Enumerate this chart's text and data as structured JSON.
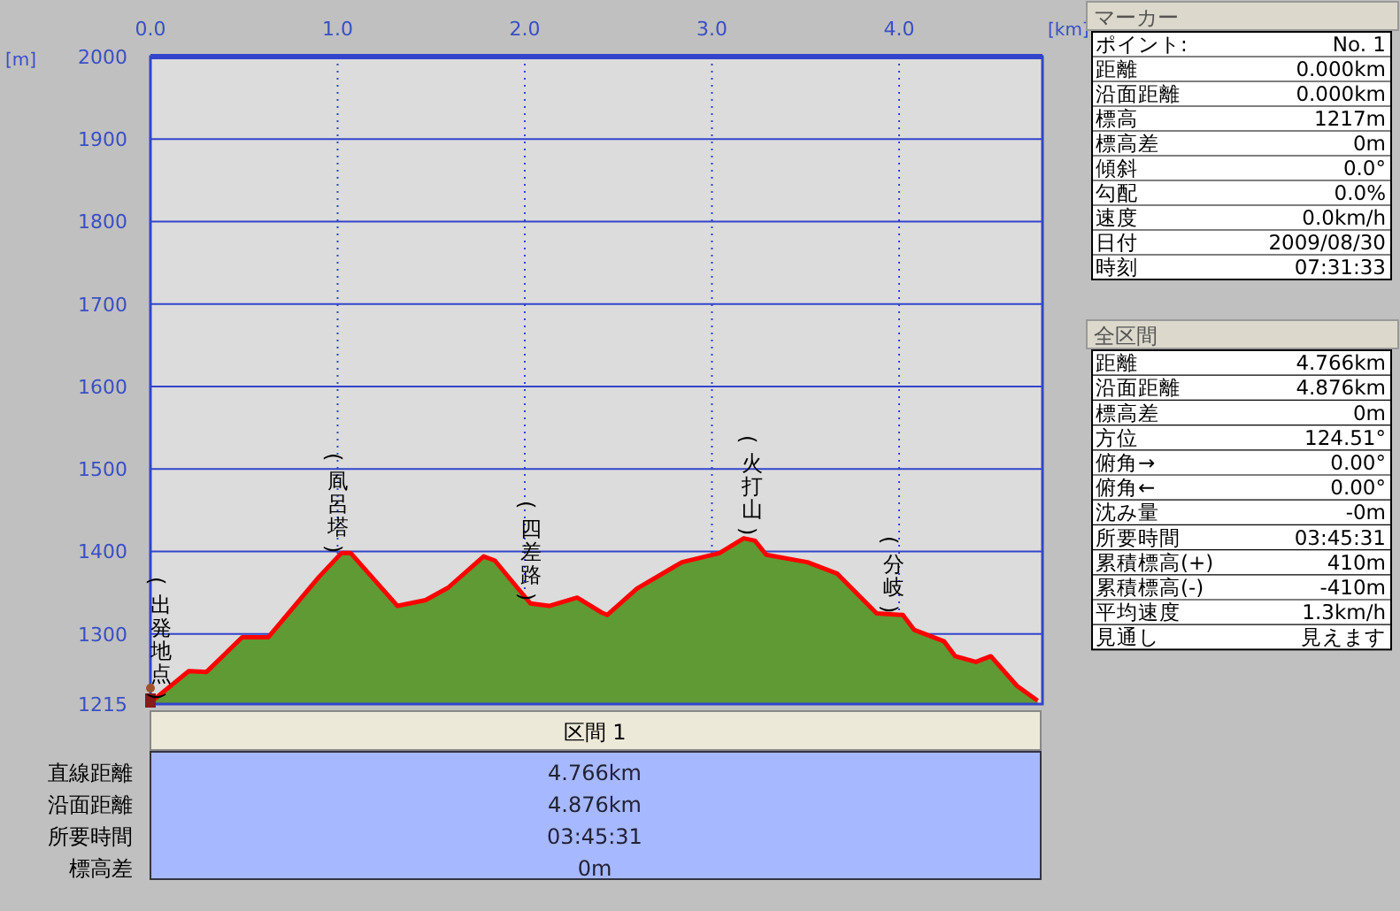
{
  "chart_data": [
    {
      "type": "area",
      "xlabel": "[km]",
      "ylabel": "[m]",
      "xlim": [
        0,
        4.766
      ],
      "ylim": [
        1215,
        2000
      ],
      "xticks": [
        {
          "value": 0,
          "label": "0.0"
        },
        {
          "value": 1,
          "label": "1.0"
        },
        {
          "value": 2,
          "label": "2.0"
        },
        {
          "value": 3,
          "label": "3.0"
        },
        {
          "value": 4,
          "label": "4.0"
        }
      ],
      "yticks": [
        1215,
        1300,
        1400,
        1500,
        1600,
        1700,
        1800,
        1900,
        2000
      ],
      "grid": true,
      "x": [
        0,
        0.205,
        0.3,
        0.49,
        0.63,
        0.9,
        1.02,
        1.07,
        1.32,
        1.47,
        1.59,
        1.78,
        1.84,
        2.03,
        2.13,
        2.28,
        2.41,
        2.44,
        2.6,
        2.84,
        3.04,
        3.17,
        3.23,
        3.29,
        3.51,
        3.67,
        3.88,
        4.02,
        4.08,
        4.24,
        4.3,
        4.41,
        4.49,
        4.63,
        4.74
      ],
      "series": [
        {
          "color": "#5f9a35",
          "values": [
            1217,
            1255,
            1254,
            1296,
            1296,
            1369,
            1398,
            1398,
            1334,
            1341,
            1356,
            1394,
            1389,
            1337,
            1334,
            1344,
            1326,
            1323,
            1355,
            1387,
            1398,
            1416,
            1413,
            1396,
            1387,
            1373,
            1325,
            1323,
            1305,
            1291,
            1273,
            1266,
            1273,
            1237,
            1219
          ]
        }
      ],
      "annotations": [
        "(出発地点)",
        "(凮呂塔)",
        "(四差路)",
        "(火打山)",
        "(分岐)"
      ]
    },
    {
      "type": "other",
      "title": "区間 1",
      "annotations": [
        "直線距離",
        "4.766km",
        "沿面距離",
        "4.876km",
        "所要時間",
        "03:45:31",
        "標高差",
        "0m"
      ]
    },
    {
      "type": "other",
      "title": "マーカー",
      "annotations": [
        "ポイント:",
        "No. 1",
        "距離",
        "0.000km",
        "沿面距離",
        "0.000km",
        "標高",
        "1217m",
        "標高差",
        "0m",
        "傾斜",
        "0.0°",
        "勾配",
        "0.0%",
        "速度",
        "0.0km/h",
        "日付",
        "2009/08/30",
        "時刻",
        "07:31:33"
      ]
    },
    {
      "type": "other",
      "title": "全区間",
      "annotations": [
        "距離",
        "4.766km",
        "沿面距離",
        "4.876km",
        "標高差",
        "0m",
        "方位",
        "124.51°",
        "俯角→",
        "0.00°",
        "俯角←",
        "0.00°",
        "沈み量",
        "-0m",
        "所要時間",
        "03:45:31",
        "累積標高(+)",
        "410m",
        "累積標高(-)",
        "-410m",
        "平均速度",
        "1.3km/h",
        "見通し",
        "見えます"
      ]
    }
  ]
}
